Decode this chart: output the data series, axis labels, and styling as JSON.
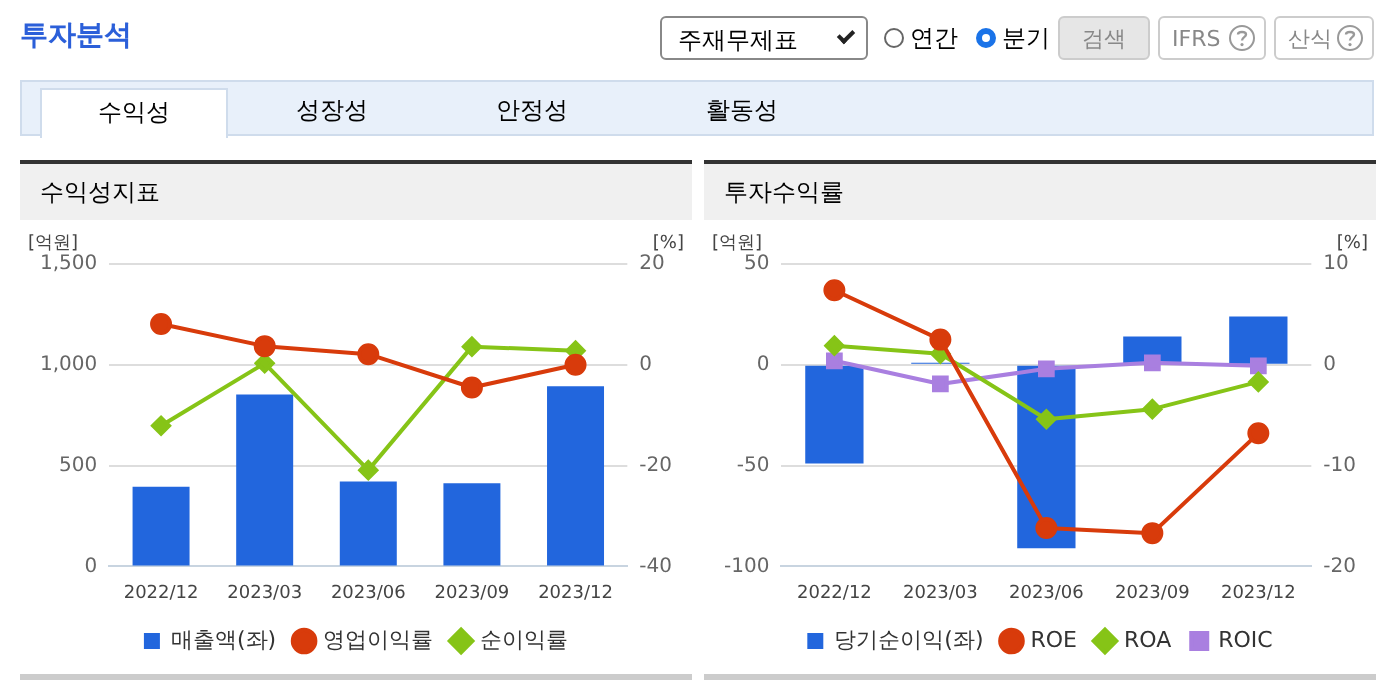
{
  "chart_data": [
    {
      "type": "bar",
      "title": "수익성지표",
      "ylabel": "[억원]",
      "y2label": "[%]",
      "annotations": [
        "투자분석",
        "주재무제표",
        "연간",
        "분기",
        "검색",
        "IFRS",
        "산식",
        "수익성",
        "성장성",
        "안정성",
        "활동성"
      ],
      "categories": [
        "2022/12",
        "2023/03",
        "2023/06",
        "2023/09",
        "2023/12"
      ],
      "series": [
        {
          "name": "매출액(좌)",
          "color": "#2266dd",
          "values": [
            395,
            853,
            421,
            412,
            893
          ]
        },
        {
          "name": "영업이익률",
          "type": "line",
          "axis": "y2",
          "marker": "circle",
          "color": "#d83b0b",
          "values": [
            8.1,
            3.7,
            2.1,
            -4.5,
            0
          ]
        },
        {
          "name": "순이익률",
          "type": "line",
          "axis": "y2",
          "marker": "diamond",
          "color": "#86c417",
          "values": [
            -12.1,
            0.3,
            -20.9,
            3.6,
            2.8
          ]
        }
      ],
      "ylim": [
        0,
        1500
      ],
      "yticks": [
        0,
        500,
        {
          "value": 1000,
          "label": "1,000"
        },
        {
          "value": 1500,
          "label": "1,500"
        }
      ],
      "y2lim": [
        -40,
        20
      ],
      "y2ticks": [
        -40,
        -20,
        0,
        20
      ],
      "grid": "y",
      "legend": "bottom"
    },
    {
      "type": "bar",
      "title": "투자수익률",
      "ylabel": "[억원]",
      "y2label": "[%]",
      "categories": [
        "2022/12",
        "2023/03",
        "2023/06",
        "2023/09",
        "2023/12"
      ],
      "series": [
        {
          "name": "당기순이익(좌)",
          "color": "#2266dd",
          "values": [
            -49,
            1,
            -91,
            14,
            24
          ]
        },
        {
          "name": "ROE",
          "type": "line",
          "axis": "y2",
          "marker": "circle",
          "color": "#d83b0b",
          "values": [
            7.4,
            2.5,
            -16.2,
            -16.7,
            -6.8
          ]
        },
        {
          "name": "ROA",
          "type": "line",
          "axis": "y2",
          "marker": "diamond",
          "color": "#86c417",
          "values": [
            1.9,
            1.1,
            -5.4,
            -4.4,
            -1.7
          ]
        },
        {
          "name": "ROIC",
          "type": "line",
          "axis": "y2",
          "marker": "square",
          "color": "#a97fe0",
          "values": [
            0.4,
            -1.9,
            -0.4,
            0.2,
            -0.1
          ]
        }
      ],
      "ylim": [
        -100,
        50
      ],
      "yticks": [
        -100,
        -50,
        0,
        50
      ],
      "y2lim": [
        -20,
        10
      ],
      "y2ticks": [
        -20,
        -10,
        0,
        10
      ],
      "grid": "y",
      "legend": "bottom"
    }
  ]
}
